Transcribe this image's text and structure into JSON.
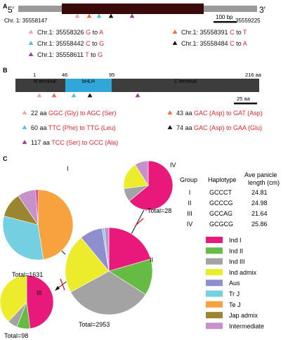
{
  "panel_a": {
    "label": "A",
    "five_prime": "5′",
    "three_prime": "3′",
    "start_coord": "Chr. 1: 35558147",
    "end_coord": "35559225",
    "scale_label": "100 bp",
    "variants": [
      {
        "marker_color": "#f3a3a8",
        "prefix": "Chr.1: 35558326 ",
        "ref": "G",
        "mid": " to ",
        "alt": "A"
      },
      {
        "marker_color": "#f26a3a",
        "prefix": "Chr.1: 35558391 ",
        "ref": "C",
        "mid": " to ",
        "alt": "T"
      },
      {
        "marker_color": "#4fc1d8",
        "prefix": "Chr.1: 35558442 ",
        "ref": "C",
        "mid": " to ",
        "alt": "G"
      },
      {
        "marker_color": "#111111",
        "prefix": "Chr.1: 35558484 ",
        "ref": "C",
        "mid": " to ",
        "alt": "A"
      },
      {
        "marker_color": "#a0399c",
        "prefix": "Chr.1: 35558611 ",
        "ref": "T",
        "mid": " to ",
        "alt": "G"
      }
    ]
  },
  "panel_b": {
    "label": "B",
    "pos_start": "1",
    "pos_46": "46",
    "pos_95": "95",
    "pos_end": "216 aa",
    "n_terminal": "N terminal",
    "bhlh": "bHLH",
    "c_terminal": "C terminal",
    "scale_label": "25 aa",
    "substitutions": [
      {
        "marker_color": "#f3a3a8",
        "prefix": "22 aa ",
        "text": "GGC (Gly) to AGC (Ser)"
      },
      {
        "marker_color": "#f26a3a",
        "prefix": "43 aa ",
        "text": "GAC (Asp) to GAT (Asp)"
      },
      {
        "marker_color": "#4fc1d8",
        "prefix": "60 aa ",
        "text": "TTC (Phe) to TTG (Leu)"
      },
      {
        "marker_color": "#111111",
        "prefix": "74 aa ",
        "text": "GAC (Asp) to GAA (Glu)"
      },
      {
        "marker_color": "#a0399c",
        "prefix": "117 aa ",
        "text": "TCC (Ser) to GCC (Ala)"
      }
    ]
  },
  "panel_c": {
    "label": "C",
    "table": {
      "headers": [
        "Group",
        "Haplotype",
        "Ave panicle\nlength (cm)"
      ],
      "rows": [
        [
          "I",
          "GCCCT",
          "24.81"
        ],
        [
          "II",
          "GCCCG",
          "24.98"
        ],
        [
          "III",
          "GCCAG",
          "21.64"
        ],
        [
          "IV",
          "GCGCG",
          "25.86"
        ]
      ]
    },
    "legend": [
      {
        "name": "Ind I",
        "color": "#e8197a"
      },
      {
        "name": "Ind II",
        "color": "#66bb45"
      },
      {
        "name": "Ind III",
        "color": "#a3a3a3"
      },
      {
        "name": "Ind admix",
        "color": "#ecec2c"
      },
      {
        "name": "Aus",
        "color": "#8f8fd0"
      },
      {
        "name": "Tr J",
        "color": "#74d0e0"
      },
      {
        "name": "Te J",
        "color": "#f7a23e"
      },
      {
        "name": "Jap admix",
        "color": "#9a8630"
      },
      {
        "name": "Intermediate",
        "color": "#c792c9"
      }
    ],
    "pies": [
      {
        "group": "I",
        "total": "Total=1631",
        "slices": [
          {
            "cat": "Te J",
            "frac": 0.475
          },
          {
            "cat": "Tr J",
            "frac": 0.315
          },
          {
            "cat": "Jap admix",
            "frac": 0.115
          },
          {
            "cat": "Intermediate",
            "frac": 0.085
          },
          {
            "cat": "Ind I",
            "frac": 0.01
          }
        ]
      },
      {
        "group": "II",
        "total": "Total=2953",
        "slices": [
          {
            "cat": "Ind I",
            "frac": 0.205
          },
          {
            "cat": "Ind II",
            "frac": 0.135
          },
          {
            "cat": "Ind III",
            "frac": 0.33
          },
          {
            "cat": "Ind admix",
            "frac": 0.22
          },
          {
            "cat": "Aus",
            "frac": 0.085
          },
          {
            "cat": "Tr J",
            "frac": 0.008
          },
          {
            "cat": "Intermediate",
            "frac": 0.017
          }
        ]
      },
      {
        "group": "III",
        "total": "Total=98",
        "slices": [
          {
            "cat": "Ind I",
            "frac": 0.48
          },
          {
            "cat": "Ind II",
            "frac": 0.08
          },
          {
            "cat": "Ind III",
            "frac": 0.06
          },
          {
            "cat": "Ind admix",
            "frac": 0.38
          }
        ]
      },
      {
        "group": "IV",
        "total": "Total=28",
        "slices": [
          {
            "cat": "Ind I",
            "frac": 0.64
          },
          {
            "cat": "Ind III",
            "frac": 0.09
          },
          {
            "cat": "Ind admix",
            "frac": 0.18
          },
          {
            "cat": "Intermediate",
            "frac": 0.09
          }
        ]
      }
    ]
  }
}
